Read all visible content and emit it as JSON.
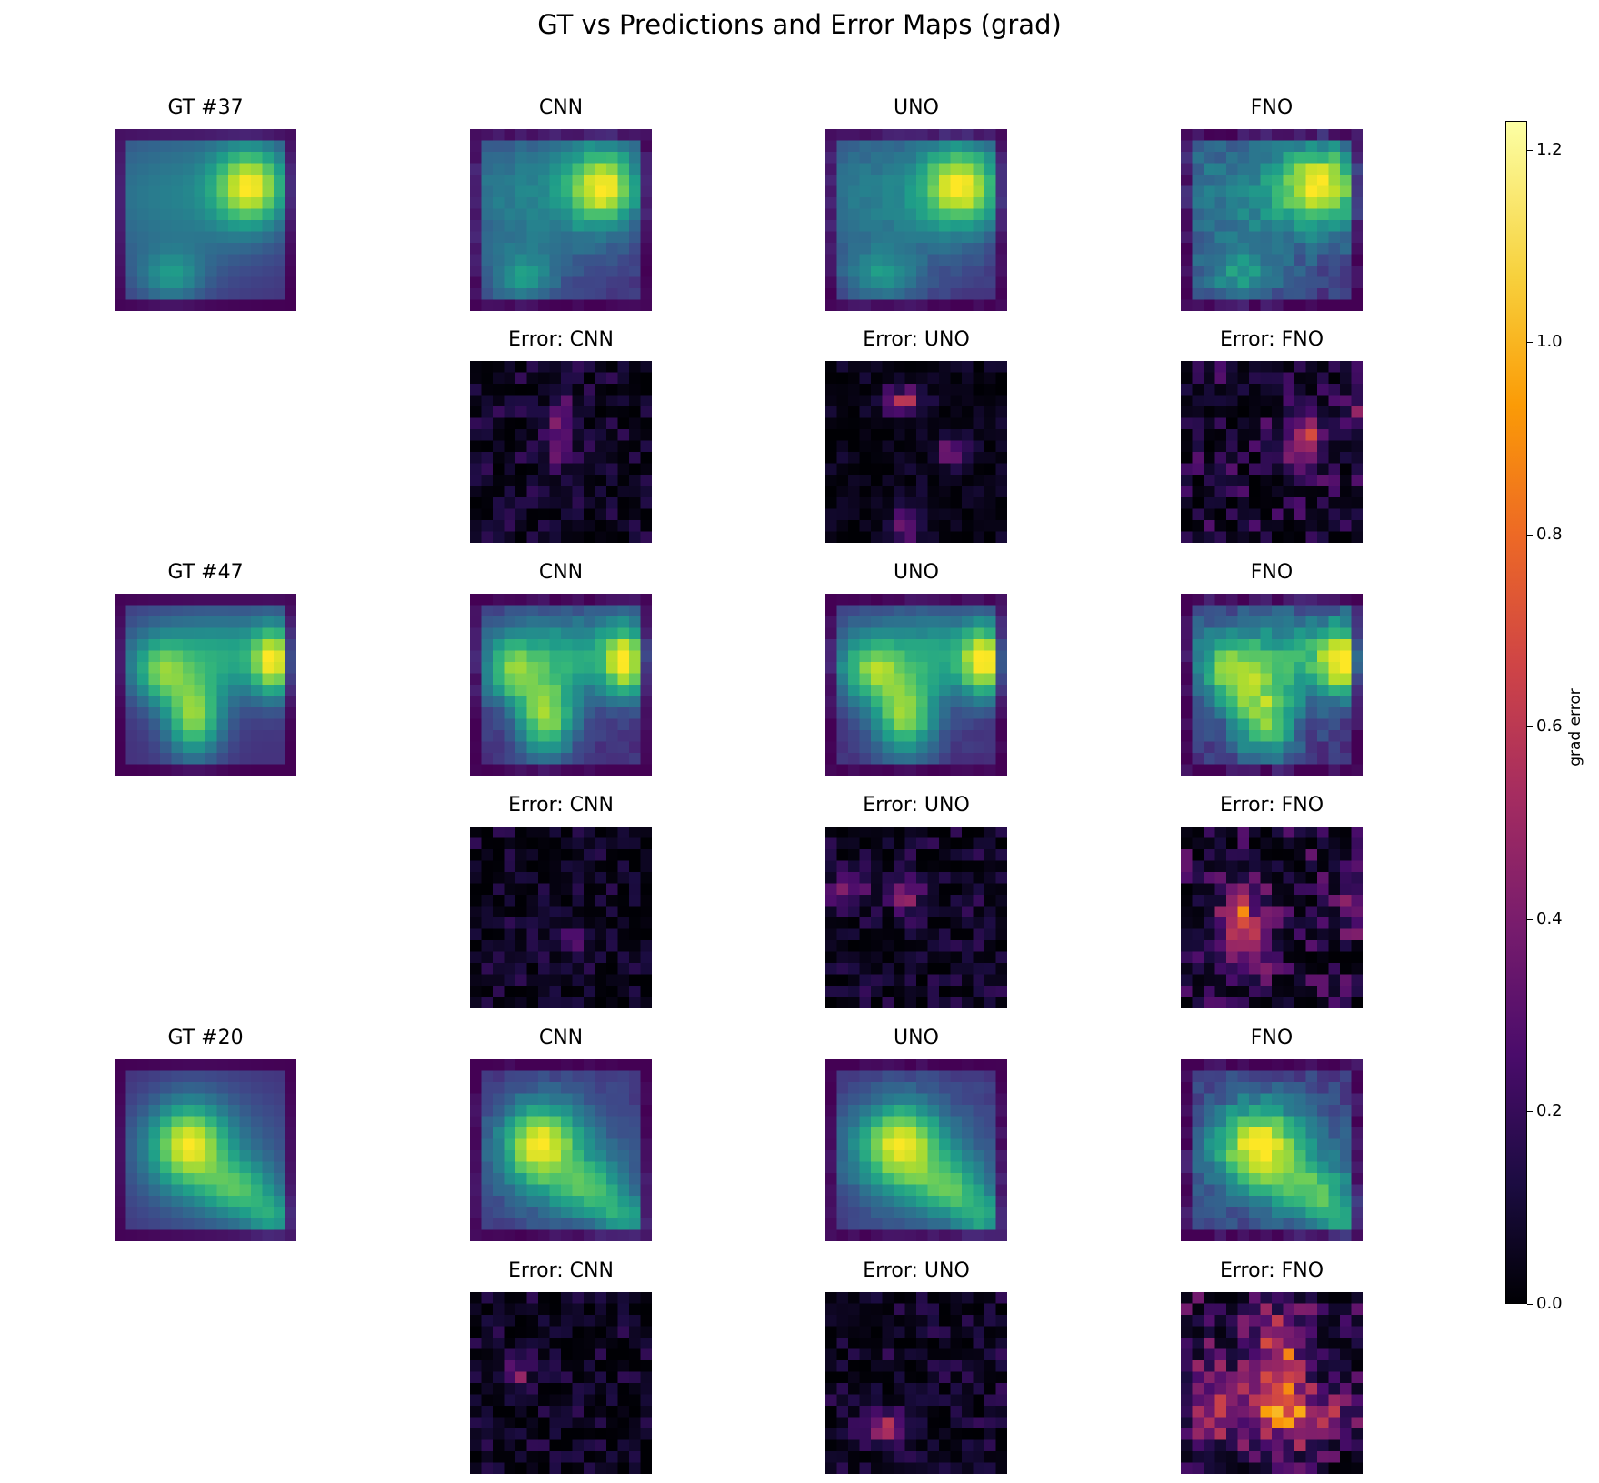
{
  "chart_data": {
    "type": "heatmap",
    "title": "GT vs Predictions and Error Maps (grad)",
    "field_colormap": "viridis",
    "error_colormap": "inferno",
    "grid_size": [
      16,
      16
    ],
    "colorbar": {
      "label": "grad error",
      "range": [
        0,
        1.23
      ],
      "ticks": [
        "0.0",
        "0.2",
        "0.4",
        "0.6",
        "0.8",
        "1.0",
        "1.2"
      ],
      "tick_values": [
        0,
        0.2,
        0.4,
        0.6,
        0.8,
        1.0,
        1.2
      ]
    },
    "models": [
      "CNN",
      "UNO",
      "FNO"
    ],
    "samples": [
      {
        "gt_title": "GT #37",
        "pred_titles": [
          "CNN",
          "UNO",
          "FNO"
        ],
        "error_titles": [
          "Error: CNN",
          "Error: UNO",
          "Error: FNO"
        ],
        "blobs": [
          {
            "cx": 11.5,
            "cy": 4.5,
            "sx": 2.2,
            "sy": 2.4,
            "amp": 0.55
          },
          {
            "cx": 5.5,
            "cy": 5.5,
            "sx": 7.0,
            "sy": 5.0,
            "amp": 0.25
          },
          {
            "cx": 4.5,
            "cy": 12.5,
            "sx": 2.0,
            "sy": 1.6,
            "amp": 0.25
          }
        ],
        "error_peaks": [
          [
            {
              "cx": 7.5,
              "cy": 5.5,
              "sx": 0.8,
              "sy": 2.5,
              "amp": 0.35
            }
          ],
          [
            {
              "cx": 6.5,
              "cy": 3.0,
              "sx": 1.2,
              "sy": 0.9,
              "amp": 0.45
            },
            {
              "cx": 10.5,
              "cy": 7.5,
              "sx": 1.0,
              "sy": 1.0,
              "amp": 0.35
            },
            {
              "cx": 6.5,
              "cy": 14.0,
              "sx": 0.8,
              "sy": 1.0,
              "amp": 0.4
            }
          ],
          [
            {
              "cx": 10.5,
              "cy": 6.5,
              "sx": 1.3,
              "sy": 1.8,
              "amp": 0.45
            },
            {
              "cx": 15.0,
              "cy": 4.5,
              "sx": 0.8,
              "sy": 1.2,
              "amp": 0.3
            }
          ]
        ],
        "error_noise": [
          0.22,
          0.12,
          0.32
        ]
      },
      {
        "gt_title": "GT #47",
        "pred_titles": [
          "CNN",
          "UNO",
          "FNO"
        ],
        "error_titles": [
          "Error: CNN",
          "Error: UNO",
          "Error: FNO"
        ],
        "blobs": [
          {
            "cx": 6.5,
            "cy": 10.5,
            "sx": 1.8,
            "sy": 2.4,
            "amp": 0.5
          },
          {
            "cx": 13.5,
            "cy": 5.5,
            "sx": 1.3,
            "sy": 2.2,
            "amp": 0.45
          },
          {
            "cx": 8.5,
            "cy": 5.0,
            "sx": 5.5,
            "sy": 2.6,
            "amp": 0.35
          },
          {
            "cx": 3.5,
            "cy": 6.5,
            "sx": 1.6,
            "sy": 2.0,
            "amp": 0.3
          }
        ],
        "error_peaks": [
          [
            {
              "cx": 8.5,
              "cy": 9.5,
              "sx": 1.0,
              "sy": 1.0,
              "amp": 0.2
            }
          ],
          [
            {
              "cx": 1.5,
              "cy": 5.0,
              "sx": 1.0,
              "sy": 1.0,
              "amp": 0.35
            },
            {
              "cx": 6.5,
              "cy": 5.5,
              "sx": 0.8,
              "sy": 1.2,
              "amp": 0.4
            }
          ],
          [
            {
              "cx": 5.0,
              "cy": 8.5,
              "sx": 1.6,
              "sy": 2.4,
              "amp": 0.55
            },
            {
              "cx": 14.5,
              "cy": 6.5,
              "sx": 0.8,
              "sy": 1.5,
              "amp": 0.35
            }
          ]
        ],
        "error_noise": [
          0.2,
          0.22,
          0.35
        ]
      },
      {
        "gt_title": "GT #20",
        "pred_titles": [
          "CNN",
          "UNO",
          "FNO"
        ],
        "error_titles": [
          "Error: CNN",
          "Error: UNO",
          "Error: FNO"
        ],
        "blobs": [
          {
            "cx": 6.0,
            "cy": 7.0,
            "sx": 2.4,
            "sy": 2.6,
            "amp": 0.6
          },
          {
            "cx": 10.5,
            "cy": 11.0,
            "sx": 2.2,
            "sy": 1.8,
            "amp": 0.35
          },
          {
            "cx": 13.5,
            "cy": 13.5,
            "sx": 1.6,
            "sy": 1.4,
            "amp": 0.3
          },
          {
            "cx": 8.0,
            "cy": 8.5,
            "sx": 6.0,
            "sy": 5.0,
            "amp": 0.2
          }
        ],
        "error_peaks": [
          [
            {
              "cx": 3.5,
              "cy": 6.5,
              "sx": 1.0,
              "sy": 1.0,
              "amp": 0.3
            }
          ],
          [
            {
              "cx": 4.5,
              "cy": 11.5,
              "sx": 1.5,
              "sy": 0.9,
              "amp": 0.55
            }
          ],
          [
            {
              "cx": 8.0,
              "cy": 7.0,
              "sx": 2.0,
              "sy": 4.0,
              "amp": 0.55
            },
            {
              "cx": 10.5,
              "cy": 10.5,
              "sx": 3.0,
              "sy": 1.2,
              "amp": 0.45
            },
            {
              "cx": 2.0,
              "cy": 9.5,
              "sx": 1.5,
              "sy": 2.5,
              "amp": 0.45
            }
          ]
        ],
        "error_noise": [
          0.2,
          0.22,
          0.4
        ]
      }
    ]
  }
}
